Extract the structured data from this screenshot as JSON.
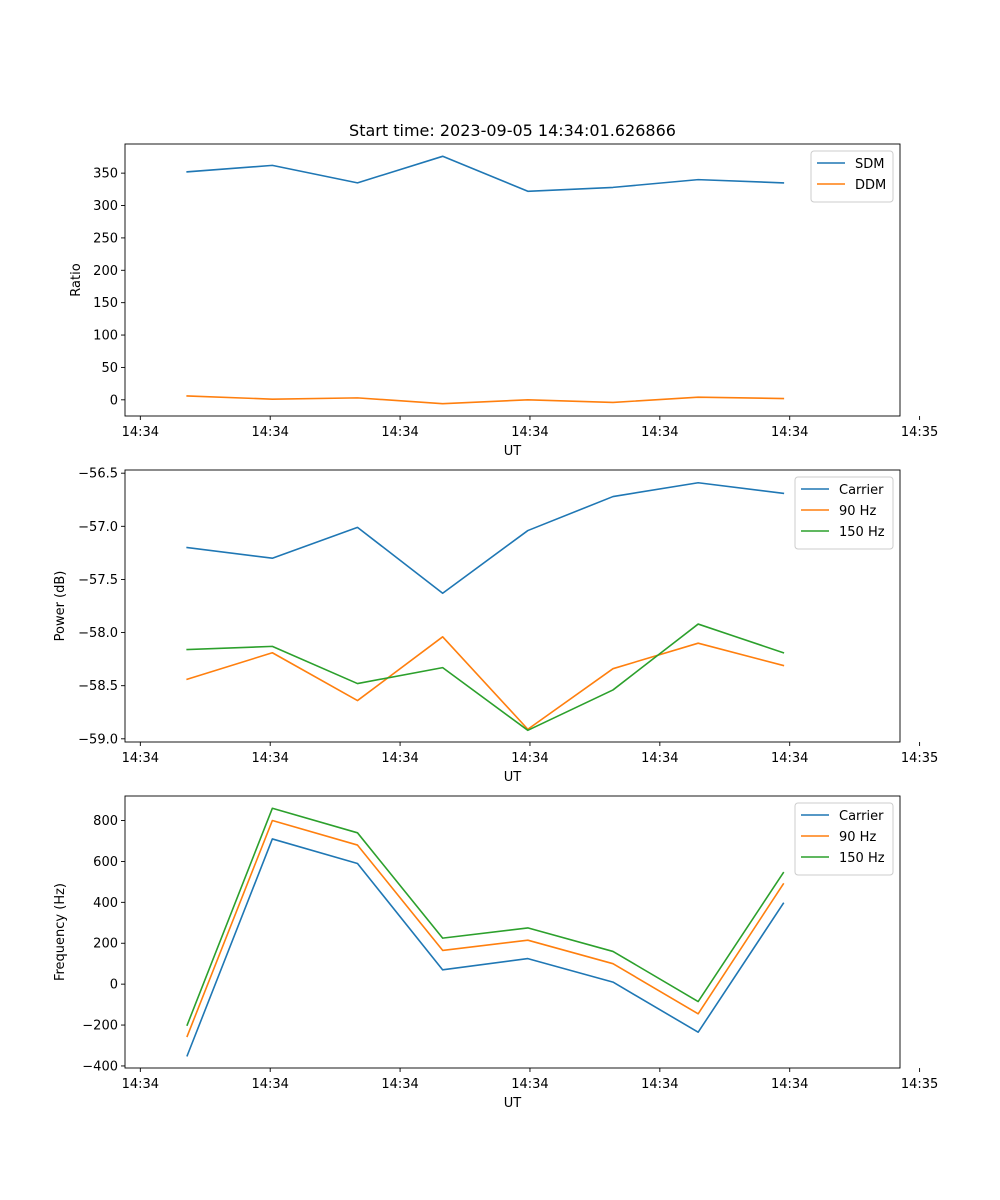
{
  "figure_title": "Start time: 2023-09-05 14:34:01.626866",
  "chart_data": [
    {
      "type": "line",
      "title": "Start time: 2023-09-05 14:34:01.626866",
      "xlabel": "UT",
      "ylabel": "Ratio",
      "x": [
        1,
        2,
        3,
        4,
        5,
        6,
        7,
        8
      ],
      "xlim": [
        0.27,
        9.37
      ],
      "ylim": [
        -25,
        395
      ],
      "xticks": [
        0.45,
        1.975,
        3.5,
        5.025,
        6.55,
        8.075,
        9.6
      ],
      "xtick_labels": [
        "14:34",
        "14:34",
        "14:34",
        "14:34",
        "14:34",
        "14:34",
        "14:35"
      ],
      "yticks": [
        0,
        50,
        100,
        150,
        200,
        250,
        300,
        350
      ],
      "ytick_labels": [
        "0",
        "50",
        "100",
        "150",
        "200",
        "250",
        "300",
        "350"
      ],
      "legend_position": "top-right",
      "series": [
        {
          "name": "SDM",
          "color": "#1f77b4",
          "values": [
            352,
            362,
            335,
            376,
            322,
            328,
            340,
            335
          ]
        },
        {
          "name": "DDM",
          "color": "#ff7f0e",
          "values": [
            6,
            1,
            3,
            -6,
            0,
            -4,
            4,
            2
          ]
        }
      ]
    },
    {
      "type": "line",
      "title": "",
      "xlabel": "UT",
      "ylabel": "Power (dB)",
      "x": [
        1,
        2,
        3,
        4,
        5,
        6,
        7,
        8
      ],
      "xlim": [
        0.27,
        9.37
      ],
      "ylim": [
        -59.03,
        -56.47
      ],
      "xticks": [
        0.45,
        1.975,
        3.5,
        5.025,
        6.55,
        8.075,
        9.6
      ],
      "xtick_labels": [
        "14:34",
        "14:34",
        "14:34",
        "14:34",
        "14:34",
        "14:34",
        "14:35"
      ],
      "yticks": [
        -59.0,
        -58.5,
        -58.0,
        -57.5,
        -57.0,
        -56.5
      ],
      "ytick_labels": [
        "−59.0",
        "−58.5",
        "−58.0",
        "−57.5",
        "−57.0",
        "−56.5"
      ],
      "legend_position": "top-right",
      "series": [
        {
          "name": "Carrier",
          "color": "#1f77b4",
          "values": [
            -57.2,
            -57.3,
            -57.01,
            -57.63,
            -57.04,
            -56.72,
            -56.59,
            -56.69
          ]
        },
        {
          "name": "90 Hz",
          "color": "#ff7f0e",
          "values": [
            -58.44,
            -58.19,
            -58.64,
            -58.04,
            -58.91,
            -58.34,
            -58.1,
            -58.31
          ]
        },
        {
          "name": "150 Hz",
          "color": "#2ca02c",
          "values": [
            -58.16,
            -58.13,
            -58.48,
            -58.33,
            -58.92,
            -58.54,
            -57.92,
            -58.19
          ]
        }
      ]
    },
    {
      "type": "line",
      "title": "",
      "xlabel": "UT",
      "ylabel": "Frequency (Hz)",
      "x": [
        1,
        2,
        3,
        4,
        5,
        6,
        7,
        8
      ],
      "xlim": [
        0.27,
        9.37
      ],
      "ylim": [
        -410,
        920
      ],
      "xticks": [
        0.45,
        1.975,
        3.5,
        5.025,
        6.55,
        8.075,
        9.6
      ],
      "xtick_labels": [
        "14:34",
        "14:34",
        "14:34",
        "14:34",
        "14:34",
        "14:34",
        "14:35"
      ],
      "yticks": [
        -400,
        -200,
        0,
        200,
        400,
        600,
        800
      ],
      "ytick_labels": [
        "−400",
        "−200",
        "0",
        "200",
        "400",
        "600",
        "800"
      ],
      "legend_position": "top-right",
      "series": [
        {
          "name": "Carrier",
          "color": "#1f77b4",
          "values": [
            -350,
            710,
            590,
            70,
            125,
            10,
            -235,
            395
          ]
        },
        {
          "name": "90 Hz",
          "color": "#ff7f0e",
          "values": [
            -255,
            800,
            680,
            165,
            215,
            100,
            -145,
            490
          ]
        },
        {
          "name": "150 Hz",
          "color": "#2ca02c",
          "values": [
            -200,
            860,
            740,
            225,
            275,
            160,
            -85,
            545
          ]
        }
      ]
    }
  ]
}
